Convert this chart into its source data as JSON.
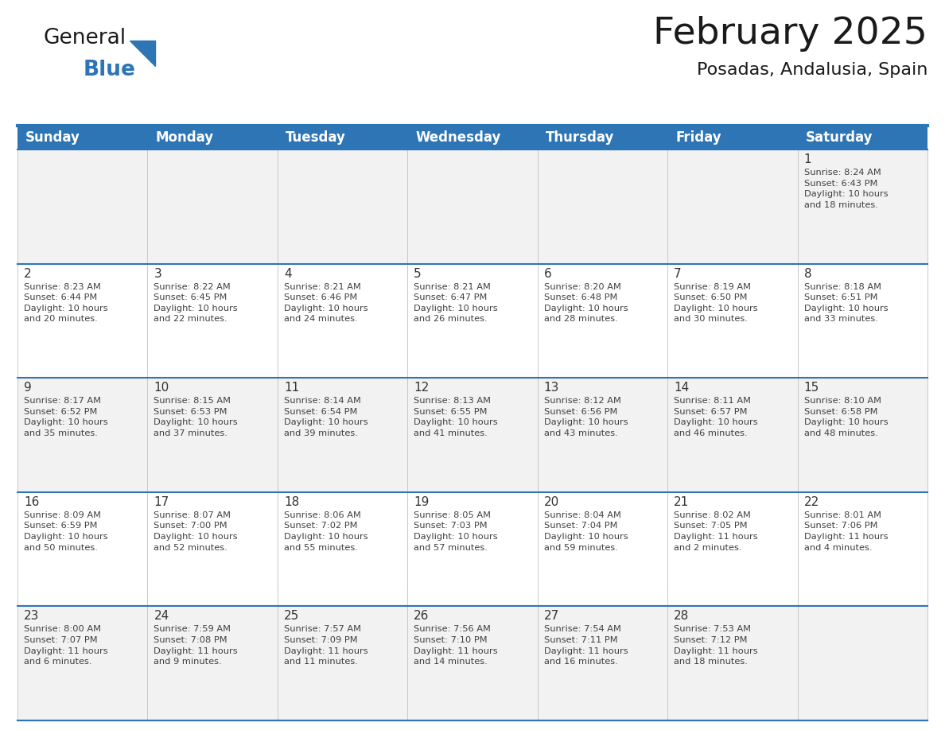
{
  "title": "February 2025",
  "subtitle": "Posadas, Andalusia, Spain",
  "header_color": "#2E75B6",
  "header_text_color": "#FFFFFF",
  "cell_bg_even": "#F2F2F2",
  "cell_bg_odd": "#FFFFFF",
  "cell_bg_color": "#F2F2F2",
  "border_color": "#2E75B6",
  "separator_color": "#2E75B6",
  "day_num_color": "#333333",
  "cell_text_color": "#404040",
  "background_color": "#FFFFFF",
  "days_of_week": [
    "Sunday",
    "Monday",
    "Tuesday",
    "Wednesday",
    "Thursday",
    "Friday",
    "Saturday"
  ],
  "calendar_data": [
    [
      {
        "day": null,
        "info": null
      },
      {
        "day": null,
        "info": null
      },
      {
        "day": null,
        "info": null
      },
      {
        "day": null,
        "info": null
      },
      {
        "day": null,
        "info": null
      },
      {
        "day": null,
        "info": null
      },
      {
        "day": "1",
        "info": "Sunrise: 8:24 AM\nSunset: 6:43 PM\nDaylight: 10 hours\nand 18 minutes."
      }
    ],
    [
      {
        "day": "2",
        "info": "Sunrise: 8:23 AM\nSunset: 6:44 PM\nDaylight: 10 hours\nand 20 minutes."
      },
      {
        "day": "3",
        "info": "Sunrise: 8:22 AM\nSunset: 6:45 PM\nDaylight: 10 hours\nand 22 minutes."
      },
      {
        "day": "4",
        "info": "Sunrise: 8:21 AM\nSunset: 6:46 PM\nDaylight: 10 hours\nand 24 minutes."
      },
      {
        "day": "5",
        "info": "Sunrise: 8:21 AM\nSunset: 6:47 PM\nDaylight: 10 hours\nand 26 minutes."
      },
      {
        "day": "6",
        "info": "Sunrise: 8:20 AM\nSunset: 6:48 PM\nDaylight: 10 hours\nand 28 minutes."
      },
      {
        "day": "7",
        "info": "Sunrise: 8:19 AM\nSunset: 6:50 PM\nDaylight: 10 hours\nand 30 minutes."
      },
      {
        "day": "8",
        "info": "Sunrise: 8:18 AM\nSunset: 6:51 PM\nDaylight: 10 hours\nand 33 minutes."
      }
    ],
    [
      {
        "day": "9",
        "info": "Sunrise: 8:17 AM\nSunset: 6:52 PM\nDaylight: 10 hours\nand 35 minutes."
      },
      {
        "day": "10",
        "info": "Sunrise: 8:15 AM\nSunset: 6:53 PM\nDaylight: 10 hours\nand 37 minutes."
      },
      {
        "day": "11",
        "info": "Sunrise: 8:14 AM\nSunset: 6:54 PM\nDaylight: 10 hours\nand 39 minutes."
      },
      {
        "day": "12",
        "info": "Sunrise: 8:13 AM\nSunset: 6:55 PM\nDaylight: 10 hours\nand 41 minutes."
      },
      {
        "day": "13",
        "info": "Sunrise: 8:12 AM\nSunset: 6:56 PM\nDaylight: 10 hours\nand 43 minutes."
      },
      {
        "day": "14",
        "info": "Sunrise: 8:11 AM\nSunset: 6:57 PM\nDaylight: 10 hours\nand 46 minutes."
      },
      {
        "day": "15",
        "info": "Sunrise: 8:10 AM\nSunset: 6:58 PM\nDaylight: 10 hours\nand 48 minutes."
      }
    ],
    [
      {
        "day": "16",
        "info": "Sunrise: 8:09 AM\nSunset: 6:59 PM\nDaylight: 10 hours\nand 50 minutes."
      },
      {
        "day": "17",
        "info": "Sunrise: 8:07 AM\nSunset: 7:00 PM\nDaylight: 10 hours\nand 52 minutes."
      },
      {
        "day": "18",
        "info": "Sunrise: 8:06 AM\nSunset: 7:02 PM\nDaylight: 10 hours\nand 55 minutes."
      },
      {
        "day": "19",
        "info": "Sunrise: 8:05 AM\nSunset: 7:03 PM\nDaylight: 10 hours\nand 57 minutes."
      },
      {
        "day": "20",
        "info": "Sunrise: 8:04 AM\nSunset: 7:04 PM\nDaylight: 10 hours\nand 59 minutes."
      },
      {
        "day": "21",
        "info": "Sunrise: 8:02 AM\nSunset: 7:05 PM\nDaylight: 11 hours\nand 2 minutes."
      },
      {
        "day": "22",
        "info": "Sunrise: 8:01 AM\nSunset: 7:06 PM\nDaylight: 11 hours\nand 4 minutes."
      }
    ],
    [
      {
        "day": "23",
        "info": "Sunrise: 8:00 AM\nSunset: 7:07 PM\nDaylight: 11 hours\nand 6 minutes."
      },
      {
        "day": "24",
        "info": "Sunrise: 7:59 AM\nSunset: 7:08 PM\nDaylight: 11 hours\nand 9 minutes."
      },
      {
        "day": "25",
        "info": "Sunrise: 7:57 AM\nSunset: 7:09 PM\nDaylight: 11 hours\nand 11 minutes."
      },
      {
        "day": "26",
        "info": "Sunrise: 7:56 AM\nSunset: 7:10 PM\nDaylight: 11 hours\nand 14 minutes."
      },
      {
        "day": "27",
        "info": "Sunrise: 7:54 AM\nSunset: 7:11 PM\nDaylight: 11 hours\nand 16 minutes."
      },
      {
        "day": "28",
        "info": "Sunrise: 7:53 AM\nSunset: 7:12 PM\nDaylight: 11 hours\nand 18 minutes."
      },
      {
        "day": null,
        "info": null
      }
    ]
  ],
  "logo_text_general": "General",
  "logo_text_blue": "Blue",
  "logo_general_color": "#1a1a1a",
  "logo_blue_color": "#2E75B6",
  "title_fontsize": 34,
  "subtitle_fontsize": 16,
  "header_fontsize": 12,
  "day_num_fontsize": 11,
  "cell_info_fontsize": 8.2
}
